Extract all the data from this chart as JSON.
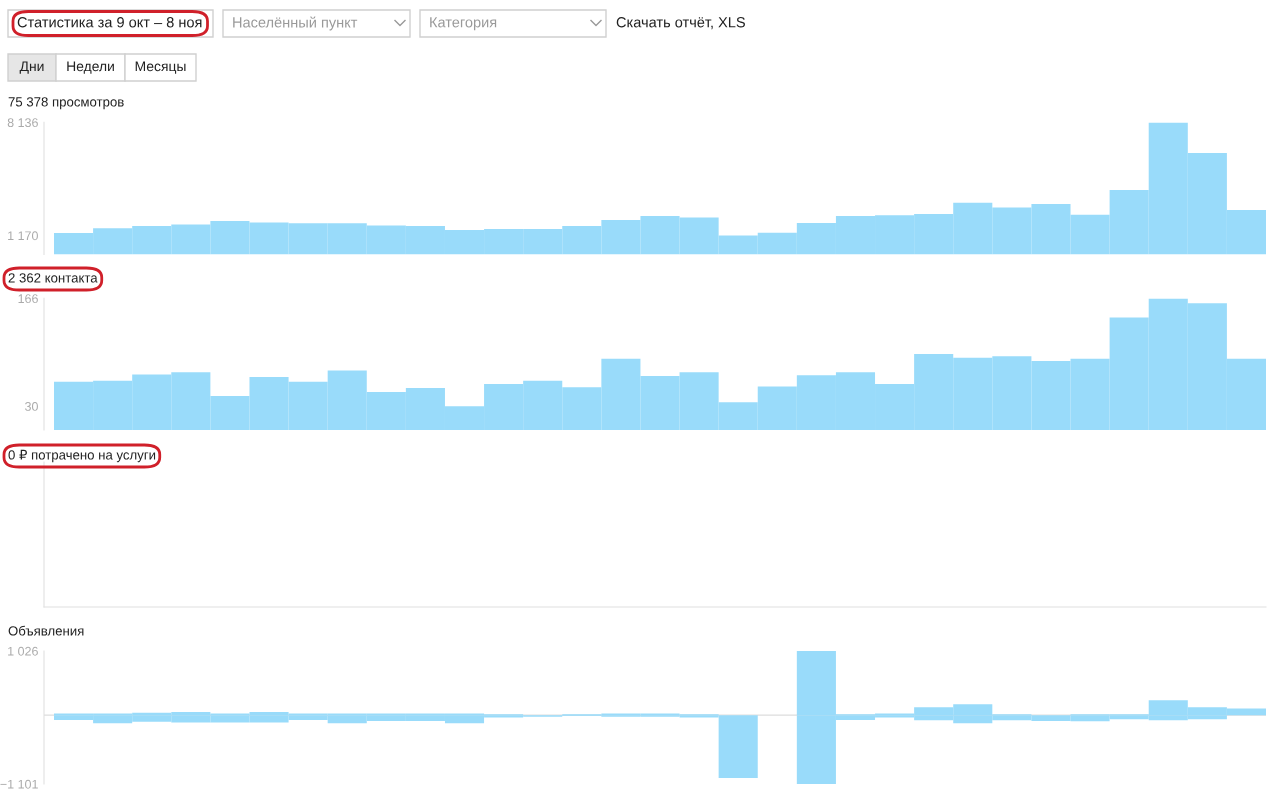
{
  "chart_data": [
    {
      "type": "bar",
      "title": "75 378 просмотров",
      "annotations": [
        "Статистика за 9 окт – 8 ноя",
        "Населённый пункт",
        "Категория",
        "Скачать отчёт, XLS",
        "Дни",
        "Недели",
        "Месяцы"
      ],
      "categories": [
        null,
        null,
        null,
        null,
        null,
        null,
        null,
        null,
        null,
        null,
        null,
        null,
        null,
        null,
        null,
        null,
        null,
        null,
        null,
        null,
        null,
        null,
        null,
        null,
        null,
        null,
        null,
        null,
        null,
        null,
        null
      ],
      "series": [
        {
          "color": "#99dbfa",
          "values": [
            1324,
            1614,
            1756,
            1842,
            2064,
            1971,
            1922,
            1922,
            1793,
            1756,
            1509,
            1571,
            1571,
            1756,
            2125,
            2372,
            2273,
            1170,
            1337,
            1940,
            2372,
            2421,
            2495,
            3185,
            2889,
            3111,
            2446,
            3973,
            8136,
            6252,
            2741
          ]
        }
      ],
      "ylim": [
        0,
        8136
      ],
      "yticks": [
        {
          "value": 1170,
          "label": "1 170"
        },
        {
          "value": 8136,
          "label": "8 136"
        }
      ],
      "tick_labels": "y",
      "grid": false
    },
    {
      "type": "bar",
      "title": "2 362 контакта",
      "categories": [
        null,
        null,
        null,
        null,
        null,
        null,
        null,
        null,
        null,
        null,
        null,
        null,
        null,
        null,
        null,
        null,
        null,
        null,
        null,
        null,
        null,
        null,
        null,
        null,
        null,
        null,
        null,
        null,
        null,
        null,
        null
      ],
      "series": [
        {
          "color": "#99dbfa",
          "values": [
            61,
            62,
            70,
            73,
            43,
            67,
            61,
            75,
            48,
            53,
            30,
            58,
            62,
            54,
            90,
            68,
            73,
            35,
            55,
            69,
            73,
            58,
            96,
            91,
            93,
            87,
            90,
            142,
            166,
            160,
            90
          ]
        }
      ],
      "ylim": [
        0,
        166
      ],
      "yticks": [
        30,
        166
      ],
      "tick_labels": "y",
      "grid": false
    },
    {
      "type": "other",
      "title": "0 ₽ потрачено на услуги"
    },
    {
      "type": "bar",
      "title": "Объявления",
      "categories": [
        null,
        null,
        null,
        null,
        null,
        null,
        null,
        null,
        null,
        null,
        null,
        null,
        null,
        null,
        null,
        null,
        null,
        null,
        null,
        null,
        null,
        null,
        null,
        null,
        null,
        null,
        null,
        null,
        null,
        null,
        null
      ],
      "stacked": true,
      "series": [
        {
          "color": "#99dbfa",
          "values": [
            26,
            26,
            39,
            52,
            26,
            52,
            26,
            26,
            26,
            26,
            26,
            13,
            0,
            13,
            26,
            26,
            13,
            0,
            0,
            1026,
            13,
            26,
            128,
            176,
            16,
            0,
            16,
            16,
            240,
            128,
            105
          ]
        },
        {
          "color": "#99dbfa",
          "values": [
            -79,
            -131,
            -105,
            -118,
            -118,
            -118,
            -79,
            -131,
            -92,
            -92,
            -131,
            -39,
            -26,
            -13,
            -26,
            -26,
            -39,
            -1004,
            0,
            -1101,
            -79,
            -39,
            -80,
            -128,
            -80,
            -92,
            -96,
            -64,
            -80,
            -64,
            0
          ]
        }
      ],
      "ylim": [
        -1101,
        1026
      ],
      "yticks": [
        {
          "value": -1101,
          "label": "−1 101"
        },
        {
          "value": 1026,
          "label": "1 026"
        }
      ],
      "ref_lines": [
        {
          "axis": "y",
          "value": 0,
          "color": "#dddddd"
        }
      ],
      "tick_labels": "y",
      "grid": false
    }
  ]
}
